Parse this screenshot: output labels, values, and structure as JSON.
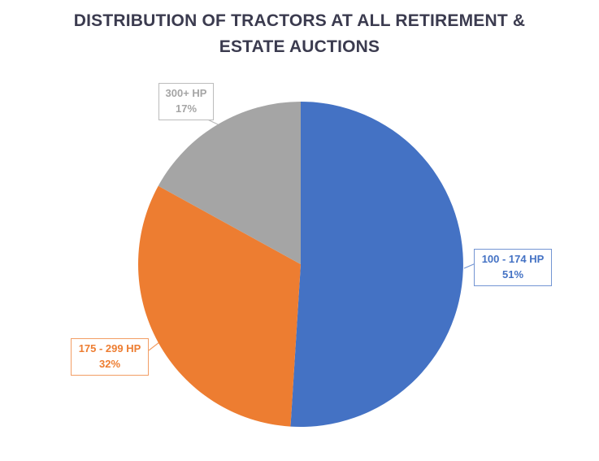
{
  "chart_data": {
    "type": "pie",
    "title": "DISTRIBUTION OF TRACTORS AT ALL RETIREMENT & ESTATE AUCTIONS",
    "title_lines": [
      "DISTRIBUTION OF TRACTORS AT ALL RETIREMENT &",
      "ESTATE AUCTIONS"
    ],
    "title_color": "#3B3B4F",
    "categories": [
      "100 - 174 HP",
      "175 - 299 HP",
      "300+ HP"
    ],
    "values": [
      51,
      32,
      17
    ],
    "value_unit": "percent",
    "colors": [
      "#4472C4",
      "#ED7D31",
      "#A5A5A5"
    ],
    "start_angle_deg": 0,
    "direction": "clockwise",
    "legend_position": "none",
    "background": "#FFFFFF",
    "labels": [
      {
        "name": "100 - 174 HP",
        "pct": "51%"
      },
      {
        "name": "175 - 299 HP",
        "pct": "32%"
      },
      {
        "name": "300+ HP",
        "pct": "17%"
      }
    ]
  }
}
